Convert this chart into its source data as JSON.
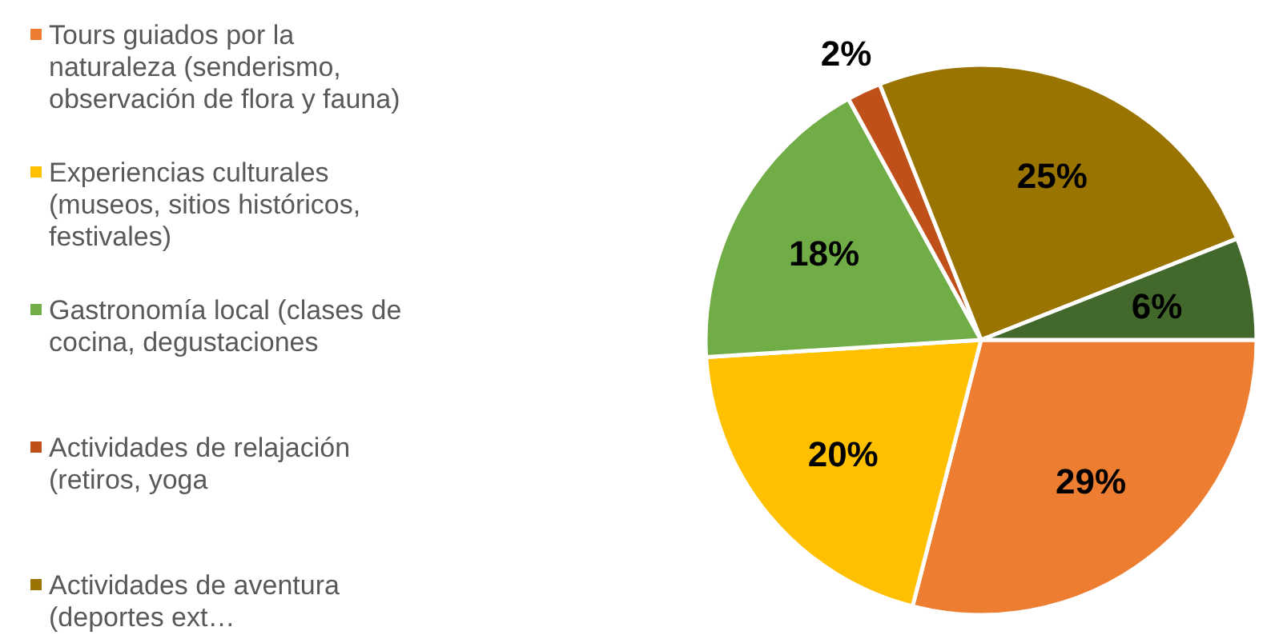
{
  "chart_data": {
    "type": "pie",
    "categories": [
      "Tours guiados por la naturaleza (senderismo, observación de flora y fauna)",
      "Experiencias culturales (museos, sitios históricos, festivales)",
      "Gastronomía local (clases de cocina, degustaciones",
      "Actividades de relajación (retiros, yoga",
      "Actividades de aventura (deportes ext…",
      null
    ],
    "values": [
      29,
      20,
      18,
      2,
      25,
      6
    ],
    "colors": [
      "#ed7d31",
      "#ffc000",
      "#70ad47",
      "#c0501a",
      "#9a7400",
      "#43682b"
    ],
    "value_labels": [
      "29%",
      "20%",
      "18%",
      "2%",
      "25%",
      "6%"
    ],
    "legend": "left"
  }
}
